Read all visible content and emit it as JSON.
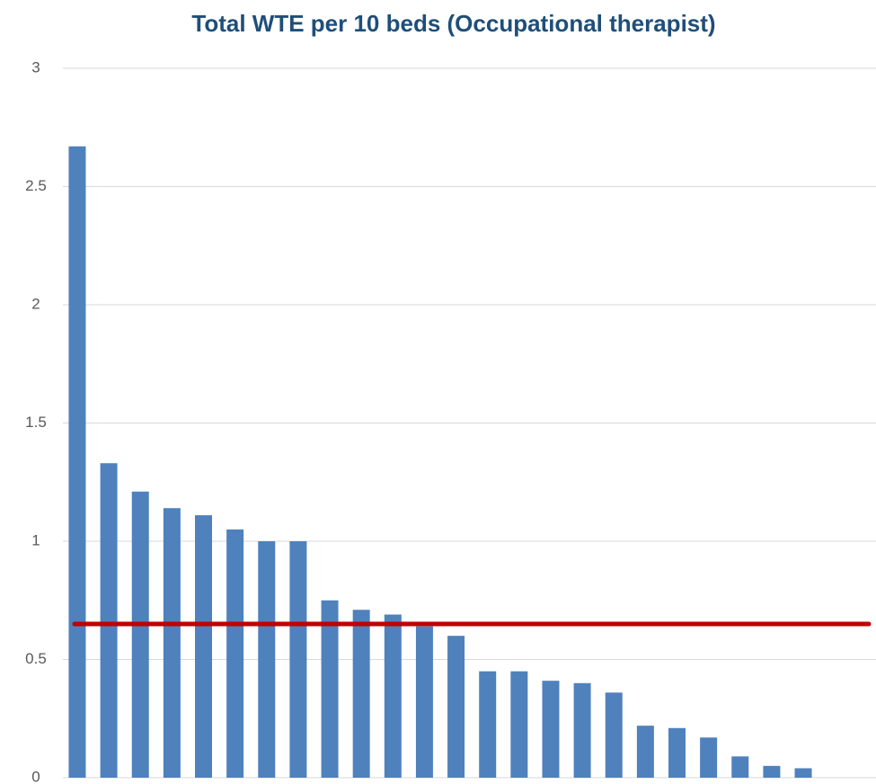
{
  "chart_data": {
    "type": "bar",
    "title": "Total WTE per 10 beds (Occupational therapist)",
    "categories": [
      null,
      null,
      null,
      null,
      null,
      null,
      null,
      null,
      null,
      null,
      null,
      null,
      null,
      null,
      null,
      null,
      null,
      null,
      null,
      null,
      null,
      null,
      null,
      null
    ],
    "values": [
      2.67,
      1.33,
      1.21,
      1.14,
      1.11,
      1.05,
      1.0,
      1.0,
      0.75,
      0.71,
      0.69,
      0.64,
      0.6,
      0.45,
      0.45,
      0.41,
      0.4,
      0.36,
      0.22,
      0.21,
      0.17,
      0.09,
      0.05,
      0.04
    ],
    "color": "#4f81bd",
    "ylim": [
      0,
      3
    ],
    "yticks": [
      0,
      0.5,
      1,
      1.5,
      2,
      2.5,
      3
    ],
    "grid": true,
    "reference_line": {
      "value": 0.65,
      "color": "#c00000"
    }
  }
}
